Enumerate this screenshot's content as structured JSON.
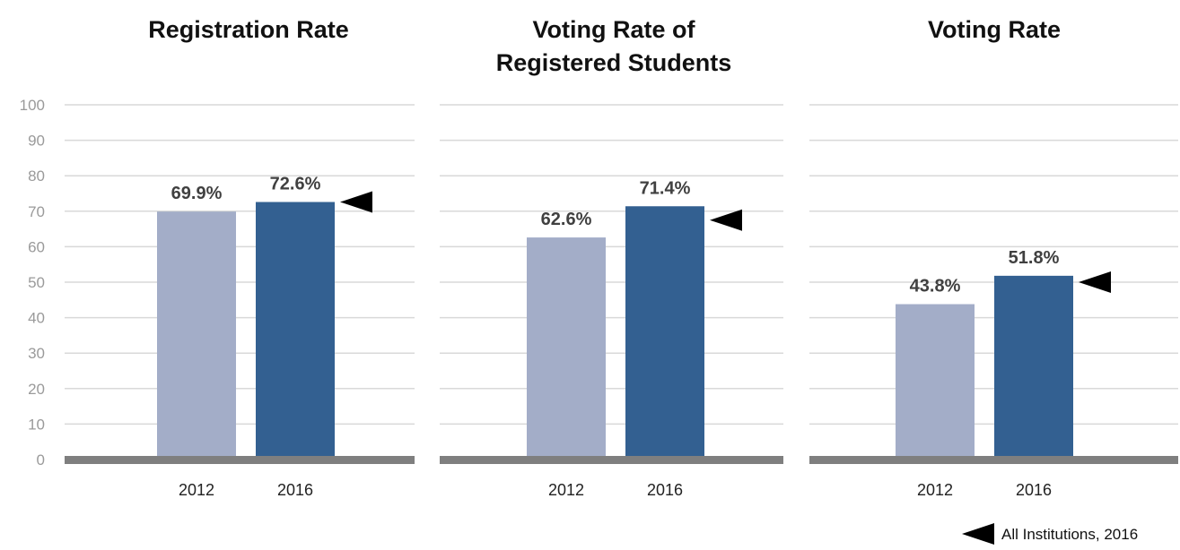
{
  "chart_data": [
    {
      "type": "bar",
      "title": [
        "Registration Rate"
      ],
      "categories": [
        "2012",
        "2016"
      ],
      "values": [
        69.9,
        72.6
      ],
      "data_labels": [
        "69.9%",
        "72.6%"
      ],
      "bar_colors": [
        "#a3adc8",
        "#336091"
      ],
      "benchmark": 72.6,
      "ylim": [
        0,
        100
      ],
      "yticks": [
        "0",
        "10",
        "20",
        "30",
        "40",
        "50",
        "60",
        "70",
        "80",
        "90",
        "100"
      ],
      "grid": true
    },
    {
      "type": "bar",
      "title": [
        "Voting Rate of",
        "Registered Students"
      ],
      "categories": [
        "2012",
        "2016"
      ],
      "values": [
        62.6,
        71.4
      ],
      "data_labels": [
        "62.6%",
        "71.4%"
      ],
      "bar_colors": [
        "#a3adc8",
        "#336091"
      ],
      "benchmark": 67.5,
      "ylim": [
        0,
        100
      ],
      "grid": true
    },
    {
      "type": "bar",
      "title": [
        "Voting Rate"
      ],
      "categories": [
        "2012",
        "2016"
      ],
      "values": [
        43.8,
        51.8
      ],
      "data_labels": [
        "43.8%",
        "51.8%"
      ],
      "bar_colors": [
        "#a3adc8",
        "#336091"
      ],
      "benchmark": 50.0,
      "ylim": [
        0,
        100
      ],
      "grid": true
    }
  ],
  "legend": {
    "label": "All Institutions, 2016",
    "marker_icon": "left-triangle-icon",
    "placement": "bottom-right"
  },
  "colors": {
    "grid": "#d9d9d9",
    "baseline": "#7f7f7f",
    "marker": "#000000"
  }
}
